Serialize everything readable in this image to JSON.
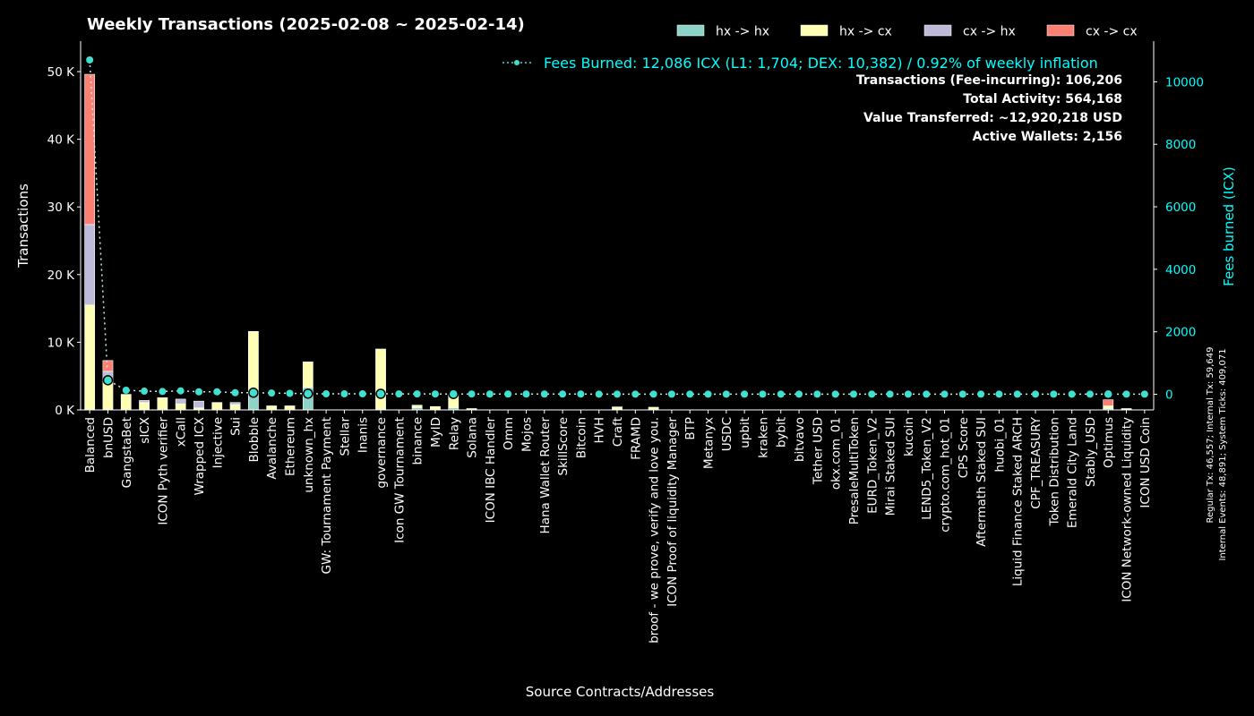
{
  "chart_data": {
    "type": "bar",
    "stacked": true,
    "title": "Weekly Transactions (2025-02-08 ~ 2025-02-14)",
    "xlabel": "Source Contracts/Addresses",
    "ylabel": "Transactions",
    "ylabel_right": "Fees burned (ICX)",
    "ylim": [
      0,
      54500
    ],
    "ylim_right": [
      -500,
      11300
    ],
    "yticks": [
      0,
      10000,
      20000,
      30000,
      40000,
      50000
    ],
    "ytick_labels": [
      "0 K",
      "10 K",
      "20 K",
      "30 K",
      "40 K",
      "50 K"
    ],
    "yticks_right": [
      0,
      2000,
      4000,
      6000,
      8000,
      10000
    ],
    "ytick_labels_right": [
      "0",
      "2000",
      "4000",
      "6000",
      "8000",
      "10000"
    ],
    "legend_position": "top-right",
    "categories": [
      "Balanced",
      "bnUSD",
      "GangstaBet",
      "sICX",
      "ICON Pyth verifier",
      "xCall",
      "Wrapped ICX",
      "Injective",
      "Sui",
      "Blobble",
      "Avalanche",
      "Ethereum",
      "unknown_hx",
      "GW: Tournament Payment",
      "Stellar",
      "Inanis",
      "governance",
      "Icon GW Tournament",
      "binance",
      "MyID",
      "Relay",
      "Solana",
      "ICON IBC Handler",
      "Omm",
      "Mojos",
      "Hana Wallet Router",
      "SkillScore",
      "Bitcoin",
      "HVH",
      "Craft",
      "FRAMD",
      "broof - we prove, verify and love you.",
      "ICON Proof of liquidity Manager",
      "BTP",
      "Metanyx",
      "USDC",
      "upbit",
      "kraken",
      "bybit",
      "bitvavo",
      "Tether USD",
      "okx.com_01",
      "PresaleMultiToken",
      "EURD_Token_V2",
      "Mirai Staked SUI",
      "kucoin",
      "LEND5_Token_V2",
      "crypto.com_hot_01",
      "CPS Score",
      "Aftermath Staked SUI",
      "huobi_01",
      "Liquid Finance Staked ARCH",
      "CPF_TREASURY",
      "Token Distribution",
      "Emerald City Land",
      "Stably_USD",
      "Optimus",
      "ICON Network-owned Liquidity",
      "ICON USD Coin"
    ],
    "series": [
      {
        "name": "hx -> hx",
        "color": "#8dd3c7",
        "values": [
          0,
          0,
          0,
          0,
          0,
          0,
          0,
          0,
          0,
          2400,
          0,
          0,
          3300,
          0,
          0,
          0,
          0,
          0,
          300,
          0,
          300,
          0,
          0,
          0,
          0,
          0,
          0,
          0,
          0,
          0,
          0,
          0,
          0,
          0,
          0,
          0,
          0,
          0,
          0,
          0,
          0,
          0,
          0,
          0,
          0,
          0,
          0,
          0,
          0,
          0,
          0,
          0,
          0,
          0,
          0,
          0,
          200,
          0,
          0
        ]
      },
      {
        "name": "hx -> cx",
        "color": "#ffffb3",
        "values": [
          15500,
          4500,
          2300,
          1100,
          1800,
          900,
          300,
          1100,
          800,
          9200,
          600,
          600,
          3800,
          0,
          0,
          0,
          9000,
          0,
          400,
          500,
          2000,
          200,
          0,
          0,
          0,
          0,
          0,
          0,
          0,
          450,
          0,
          400,
          0,
          0,
          0,
          0,
          0,
          0,
          0,
          0,
          0,
          0,
          0,
          0,
          0,
          0,
          0,
          0,
          0,
          0,
          0,
          0,
          0,
          0,
          0,
          0,
          400,
          200,
          0
        ]
      },
      {
        "name": "cx -> hx",
        "color": "#bebada",
        "values": [
          11900,
          1200,
          0,
          300,
          0,
          700,
          1000,
          0,
          300,
          0,
          0,
          0,
          0,
          0,
          0,
          0,
          0,
          0,
          0,
          0,
          0,
          0,
          0,
          0,
          0,
          0,
          0,
          0,
          0,
          0,
          0,
          0,
          0,
          0,
          0,
          0,
          0,
          0,
          0,
          0,
          0,
          0,
          0,
          0,
          0,
          0,
          0,
          0,
          0,
          0,
          0,
          0,
          0,
          0,
          0,
          0,
          0,
          0,
          0
        ]
      },
      {
        "name": "cx -> cx",
        "color": "#fb8072",
        "values": [
          22200,
          1600,
          0,
          0,
          0,
          0,
          0,
          0,
          0,
          0,
          0,
          0,
          0,
          0,
          0,
          0,
          0,
          0,
          0,
          0,
          0,
          0,
          0,
          0,
          0,
          0,
          0,
          0,
          0,
          0,
          0,
          0,
          0,
          0,
          0,
          0,
          0,
          0,
          0,
          0,
          0,
          0,
          0,
          0,
          0,
          0,
          0,
          0,
          0,
          0,
          0,
          0,
          0,
          0,
          0,
          0,
          900,
          0,
          0
        ]
      }
    ],
    "fees_series": {
      "legend": "Fees Burned: 12,086 ICX (L1: 1,704; DEX: 10,382) / 0.92% of weekly inflation",
      "color": "#40e0d0",
      "values": [
        10700,
        450,
        130,
        100,
        90,
        110,
        80,
        80,
        50,
        50,
        40,
        30,
        20,
        15,
        15,
        15,
        15,
        12,
        12,
        10,
        10,
        10,
        8,
        8,
        8,
        8,
        8,
        8,
        5,
        5,
        5,
        5,
        5,
        5,
        5,
        5,
        5,
        5,
        5,
        5,
        5,
        5,
        5,
        5,
        5,
        5,
        5,
        5,
        5,
        5,
        5,
        5,
        5,
        5,
        5,
        5,
        5,
        5,
        5
      ],
      "large_marker_indices": [
        1,
        9,
        12,
        16,
        20,
        56
      ]
    },
    "stats": [
      "Transactions (Fee-incurring): 106,206",
      "Total Activity: 564,168",
      "Value Transferred: ~12,920,218 USD",
      "Active Wallets: 2,156"
    ],
    "side_notes": [
      "Regular Tx: 46,557; Internal Tx: 59,649",
      "Internal Events: 48,891; System Ticks: 409,071"
    ]
  }
}
